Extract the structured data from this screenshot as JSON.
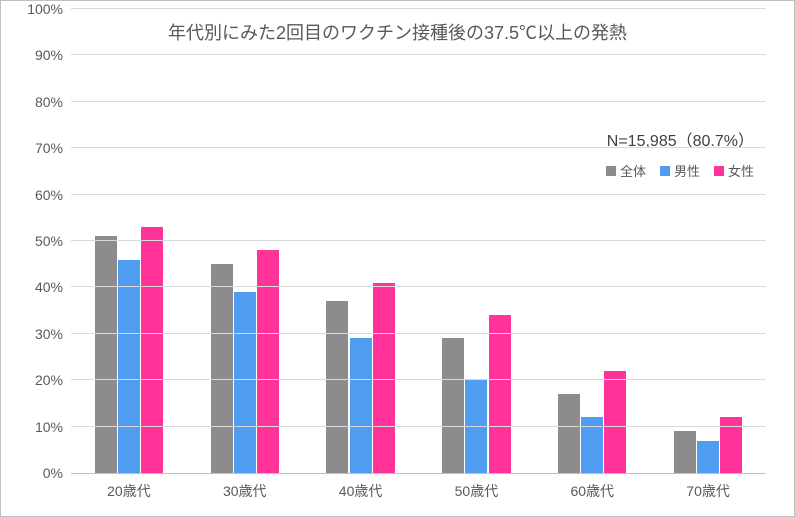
{
  "chart": {
    "type": "bar",
    "title": "年代別にみた2回目のワクチン接種後の37.5℃以上の発熱",
    "title_fontsize": 18,
    "title_color": "#595959",
    "note": "N=15,985（80.7%）",
    "note_fontsize": 16,
    "note_color": "#404040",
    "background_color": "#ffffff",
    "grid_color": "#d9d9d9",
    "axis_color": "#bfbfbf",
    "ylim": [
      0,
      100
    ],
    "ytick_step": 10,
    "ytick_suffix": "%",
    "ylabel_fontsize": 14,
    "xlabel_fontsize": 14,
    "label_color": "#595959",
    "categories": [
      "20歳代",
      "30歳代",
      "40歳代",
      "50歳代",
      "60歳代",
      "70歳代"
    ],
    "series": [
      {
        "name": "全体",
        "color": "#8c8c8c",
        "values": [
          51,
          45,
          37,
          29,
          17,
          9
        ]
      },
      {
        "name": "男性",
        "color": "#4f9cf0",
        "values": [
          46,
          39,
          29,
          20,
          12,
          7
        ]
      },
      {
        "name": "女性",
        "color": "#ff3399",
        "values": [
          53,
          48,
          41,
          34,
          22,
          12
        ]
      }
    ],
    "bar_width": 0.19,
    "bar_gap": 0.01,
    "legend_fontsize": 13
  }
}
